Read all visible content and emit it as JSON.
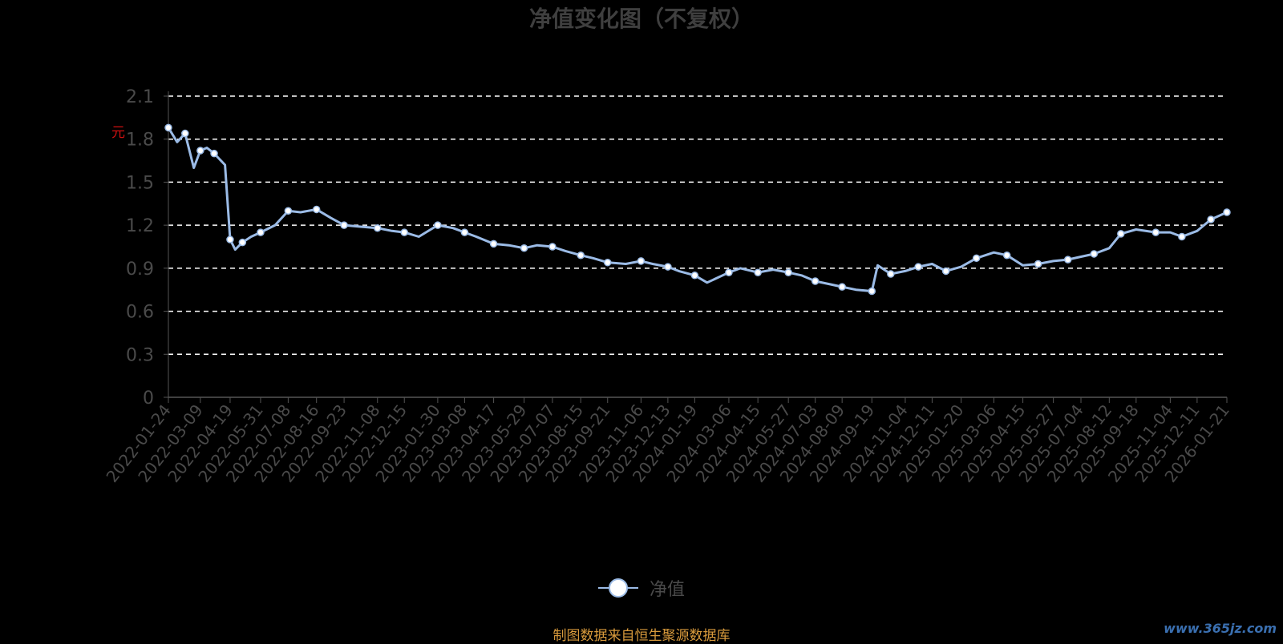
{
  "chart_data": {
    "type": "line",
    "title": "净值变化图（不复权）",
    "unit_label": "元",
    "ylim": [
      0,
      2.1
    ],
    "y_ticks": [
      "0",
      "0.3",
      "0.6",
      "0.9",
      "1.2",
      "1.5",
      "1.8",
      "2.1"
    ],
    "x_tick_labels": [
      "2022-01-24",
      "2022-03-09",
      "2022-04-19",
      "2022-05-31",
      "2022-07-08",
      "2022-08-16",
      "2022-09-23",
      "2022-11-08",
      "2022-12-15",
      "2023-01-30",
      "2023-03-08",
      "2023-04-17",
      "2023-05-29",
      "2023-07-07",
      "2023-08-15",
      "2023-09-21",
      "2023-11-06",
      "2023-12-13",
      "2024-01-19",
      "2024-03-06",
      "2024-04-15",
      "2024-05-27",
      "2024-07-03",
      "2024-08-09",
      "2024-09-19",
      "2024-11-04",
      "2024-12-11",
      "2025-01-20",
      "2025-03-06",
      "2025-04-15",
      "2025-05-27",
      "2025-07-04",
      "2025-08-12",
      "2025-09-18",
      "2025-11-04",
      "2025-12-11",
      "2026-01-21"
    ],
    "grid": true,
    "grid_style": "dashed",
    "legend_position": "bottom-center",
    "series": [
      {
        "name": "净值",
        "color": "#9bbbe6",
        "x": [
          "2022-01-24",
          "2022-02-05",
          "2022-02-16",
          "2022-02-28",
          "2022-03-09",
          "2022-03-18",
          "2022-03-28",
          "2022-04-12",
          "2022-04-19",
          "2022-04-26",
          "2022-05-06",
          "2022-05-18",
          "2022-05-31",
          "2022-06-20",
          "2022-07-08",
          "2022-07-25",
          "2022-08-16",
          "2022-09-05",
          "2022-09-23",
          "2022-10-14",
          "2022-11-08",
          "2022-11-28",
          "2022-12-15",
          "2023-01-04",
          "2023-01-30",
          "2023-02-20",
          "2023-03-08",
          "2023-03-24",
          "2023-04-17",
          "2023-05-08",
          "2023-05-29",
          "2023-06-16",
          "2023-07-07",
          "2023-07-25",
          "2023-08-15",
          "2023-09-01",
          "2023-09-21",
          "2023-10-16",
          "2023-11-06",
          "2023-11-22",
          "2023-12-13",
          "2023-12-28",
          "2024-01-19",
          "2024-02-05",
          "2024-03-06",
          "2024-03-22",
          "2024-04-15",
          "2024-05-06",
          "2024-05-27",
          "2024-06-14",
          "2024-07-03",
          "2024-07-22",
          "2024-08-09",
          "2024-08-28",
          "2024-09-19",
          "2024-09-27",
          "2024-10-15",
          "2024-11-04",
          "2024-11-22",
          "2024-12-11",
          "2024-12-30",
          "2025-01-20",
          "2025-02-10",
          "2025-03-06",
          "2025-03-24",
          "2025-04-15",
          "2025-05-06",
          "2025-05-27",
          "2025-06-16",
          "2025-07-04",
          "2025-07-22",
          "2025-08-12",
          "2025-08-28",
          "2025-09-18",
          "2025-10-15",
          "2025-11-04",
          "2025-11-20",
          "2025-12-11",
          "2025-12-30",
          "2026-01-21"
        ],
        "values": [
          1.88,
          1.78,
          1.84,
          1.6,
          1.72,
          1.74,
          1.7,
          1.62,
          1.1,
          1.03,
          1.08,
          1.12,
          1.15,
          1.2,
          1.3,
          1.29,
          1.31,
          1.25,
          1.2,
          1.19,
          1.18,
          1.16,
          1.15,
          1.12,
          1.2,
          1.18,
          1.15,
          1.12,
          1.07,
          1.06,
          1.04,
          1.06,
          1.05,
          1.02,
          0.99,
          0.97,
          0.94,
          0.93,
          0.95,
          0.93,
          0.91,
          0.88,
          0.85,
          0.8,
          0.87,
          0.9,
          0.87,
          0.89,
          0.87,
          0.85,
          0.81,
          0.79,
          0.77,
          0.75,
          0.74,
          0.92,
          0.86,
          0.88,
          0.91,
          0.93,
          0.88,
          0.91,
          0.97,
          1.01,
          0.99,
          0.92,
          0.93,
          0.95,
          0.96,
          0.98,
          1.0,
          1.04,
          1.14,
          1.17,
          1.15,
          1.15,
          1.12,
          1.16,
          1.24,
          1.29
        ]
      }
    ]
  },
  "footnote": "制图数据来自恒生聚源数据库",
  "watermark": "www.365jz.com"
}
